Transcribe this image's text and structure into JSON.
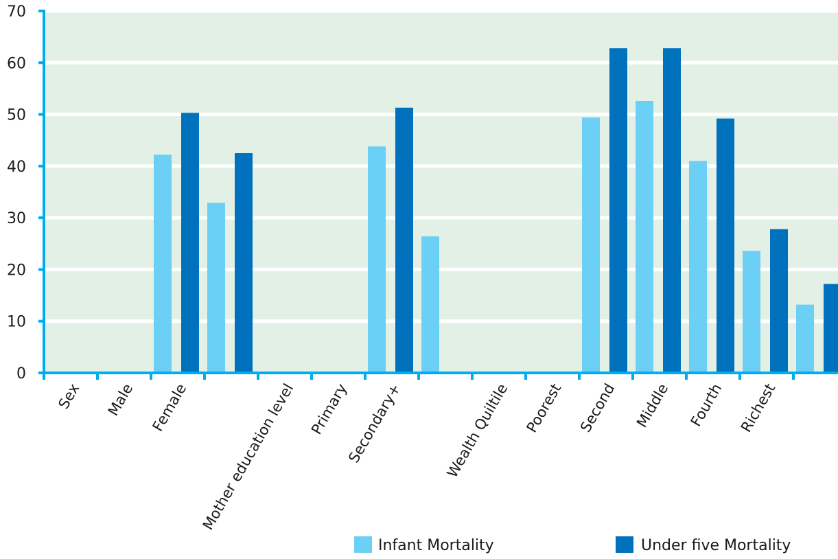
{
  "chart_data": {
    "type": "bar",
    "title": "",
    "xlabel": "",
    "ylabel": "",
    "ylim": [
      0,
      70
    ],
    "yticks": [
      0,
      10,
      20,
      30,
      40,
      50,
      60,
      70
    ],
    "grid": true,
    "legend_position": "bottom-right",
    "categories": [
      "Sex",
      "Male",
      "Female",
      "",
      "Mother education level",
      "Primary",
      "Secondary+",
      "",
      "Wealth Quiltile",
      "Poorest",
      "Second",
      "Middle",
      "Fourth",
      "Richest"
    ],
    "series": [
      {
        "name": "Infant Mortality",
        "color": "#6ccff6",
        "values": [
          null,
          42.2,
          32.9,
          null,
          null,
          43.8,
          26.4,
          null,
          null,
          49.4,
          52.6,
          41.0,
          23.6,
          13.2
        ]
      },
      {
        "name": "Under five Mortality",
        "color": "#0071bc",
        "values": [
          null,
          50.3,
          42.5,
          null,
          null,
          51.3,
          null,
          null,
          null,
          62.8,
          62.8,
          49.2,
          27.8,
          17.2
        ]
      }
    ],
    "colors": {
      "plot_background": "#e3f0e6",
      "gridline": "#ffffff",
      "axis": "#00aeef"
    }
  }
}
